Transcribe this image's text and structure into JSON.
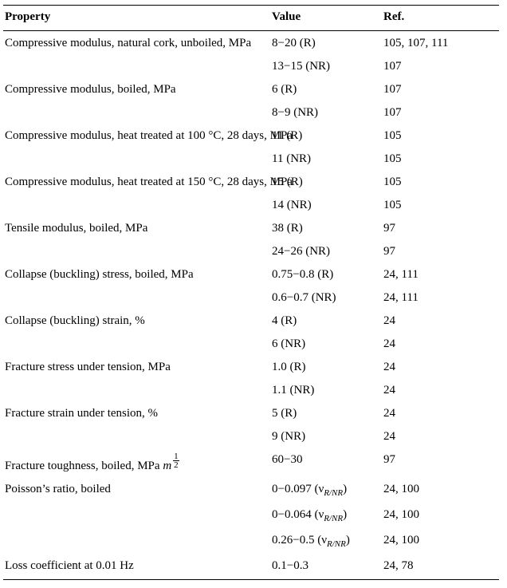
{
  "headers": {
    "property": "Property",
    "value": "Value",
    "ref": "Ref."
  },
  "rows": [
    {
      "property": "Compressive modulus, natural cork, unboiled, MPa",
      "value": "8−20 (R)",
      "ref": "105, 107, 111"
    },
    {
      "property": "",
      "value": "13−15 (NR)",
      "ref": "107"
    },
    {
      "property": "Compressive modulus, boiled, MPa",
      "value": "6 (R)",
      "ref": "107"
    },
    {
      "property": "",
      "value": "8−9 (NR)",
      "ref": "107"
    },
    {
      "property": "Compressive modulus, heat treated at 100 °C, 28 days, MPa",
      "value": "11 (R)",
      "ref": "105"
    },
    {
      "property": "",
      "value": "11 (NR)",
      "ref": "105"
    },
    {
      "property": "Compressive modulus, heat treated at 150 °C, 28 days, MPa",
      "value": "15 (R)",
      "ref": "105"
    },
    {
      "property": "",
      "value": "14 (NR)",
      "ref": "105"
    },
    {
      "property": "Tensile modulus, boiled, MPa",
      "value": "38 (R)",
      "ref": "97"
    },
    {
      "property": "",
      "value": "24−26 (NR)",
      "ref": "97"
    },
    {
      "property": "Collapse (buckling) stress, boiled, MPa",
      "value": "0.75−0.8 (R)",
      "ref": "24, 111"
    },
    {
      "property": "",
      "value": "0.6−0.7 (NR)",
      "ref": "24, 111"
    },
    {
      "property": "Collapse (buckling) strain, %",
      "value": "4 (R)",
      "ref": "24"
    },
    {
      "property": "",
      "value": "6 (NR)",
      "ref": "24"
    },
    {
      "property": "Fracture stress under tension, MPa",
      "value": "1.0 (R)",
      "ref": "24"
    },
    {
      "property": "",
      "value": "1.1 (NR)",
      "ref": "24"
    },
    {
      "property": "Fracture strain under tension, %",
      "value": "5 (R)",
      "ref": "24"
    },
    {
      "property": "",
      "value": "9 (NR)",
      "ref": "24"
    },
    {
      "property": "__FRAC__",
      "value": "60−30",
      "ref": "97"
    },
    {
      "property": "Poisson’s ratio, boiled",
      "value": "__NU__0−0.097",
      "ref": "24, 100"
    },
    {
      "property": "",
      "value": "__NU__0−0.064",
      "ref": "24, 100"
    },
    {
      "property": "",
      "value": "__NU__0.26−0.5",
      "ref": "24, 100"
    },
    {
      "property": "Loss coefficient at 0.01 Hz",
      "value": "0.1−0.3",
      "ref": "24, 78"
    }
  ],
  "special": {
    "fracture_toughness_label": "Fracture toughness, boiled, MPa",
    "m_base": "m",
    "frac_num": "1",
    "frac_den": "2",
    "nu_open": " (ν",
    "nu_sub": "R/NR",
    "nu_close": ")"
  }
}
